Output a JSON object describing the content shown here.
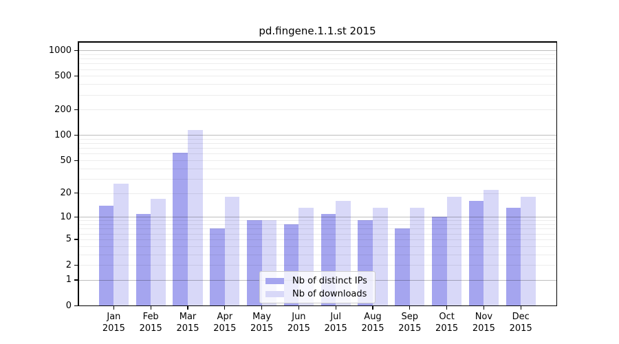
{
  "chart_data": {
    "type": "bar",
    "title": "pd.fingene.1.1.st 2015",
    "categories": [
      "Jan",
      "Feb",
      "Mar",
      "Apr",
      "May",
      "Jun",
      "Jul",
      "Aug",
      "Sep",
      "Oct",
      "Nov",
      "Dec"
    ],
    "x_year_label": "2015",
    "series": [
      {
        "name": "Nb of distinct IPs",
        "color": "#a5a5ef",
        "values": [
          14,
          11,
          62,
          7,
          9,
          8,
          11,
          9,
          7,
          10,
          16,
          13
        ]
      },
      {
        "name": "Nb of downloads",
        "color": "#d8d8f8",
        "values": [
          26,
          17,
          114,
          18,
          9,
          13,
          16,
          13,
          13,
          18,
          22,
          18
        ]
      }
    ],
    "yscale": "log10(1+x)",
    "ylim": [
      0,
      1300
    ],
    "yticks": [
      0,
      1,
      2,
      5,
      10,
      20,
      50,
      100,
      200,
      500,
      1000
    ],
    "minor_gridlines": [
      3,
      4,
      6,
      7,
      8,
      9,
      30,
      40,
      60,
      70,
      80,
      90,
      300,
      400,
      600,
      700,
      800,
      900
    ],
    "decade_gridlines": [
      1,
      10,
      100,
      1000
    ],
    "grid": "on",
    "legend_position": "lower center",
    "colors": {
      "axis": "#000000",
      "grid_decade": "rgba(0,0,0,0.26)",
      "grid_minor": "rgba(0,0,0,0.075)",
      "background": "#ffffff",
      "legend_border": "#cccccc"
    }
  }
}
